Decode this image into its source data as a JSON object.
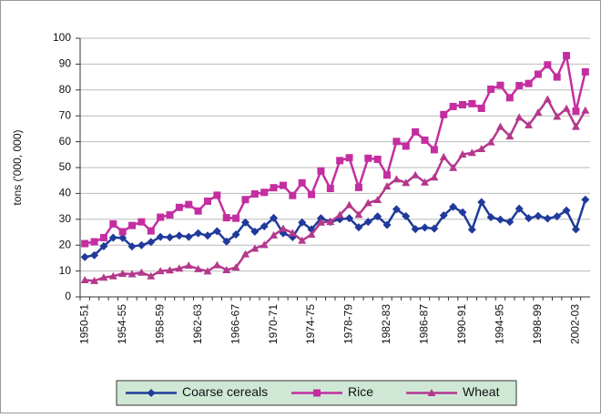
{
  "chart_data": {
    "type": "line",
    "y_label": "tons ('000, 000)",
    "categories": [
      "1950-51",
      null,
      null,
      null,
      "1954-55",
      null,
      null,
      null,
      "1958-59",
      null,
      null,
      null,
      "1962-63",
      null,
      null,
      null,
      "1966-67",
      null,
      null,
      null,
      "1970-71",
      null,
      null,
      null,
      "1974-75",
      null,
      null,
      null,
      "1978-79",
      null,
      null,
      null,
      "1982-83",
      null,
      null,
      null,
      "1986-87",
      null,
      null,
      null,
      "1990-91",
      null,
      null,
      null,
      "1994-95",
      null,
      null,
      null,
      "1998-99",
      null,
      null,
      null,
      "2002-03",
      null
    ],
    "ylim": [
      0,
      100
    ],
    "yticks": [
      0,
      10,
      20,
      30,
      40,
      50,
      60,
      70,
      80,
      90,
      100
    ],
    "grid": true,
    "legend": "bottom",
    "series": [
      {
        "name": "Coarse cereals",
        "color": "#1f3a9a",
        "marker": "diamond",
        "values": [
          15.4,
          16.1,
          19.6,
          22.9,
          22.8,
          19.5,
          20.0,
          21.2,
          23.2,
          23.0,
          23.7,
          23.2,
          24.6,
          23.7,
          25.4,
          21.4,
          24.1,
          28.8,
          25.2,
          27.3,
          30.5,
          24.6,
          23.1,
          28.8,
          26.1,
          30.4,
          29.0,
          30.0,
          30.4,
          26.9,
          29.0,
          31.1,
          27.8,
          33.9,
          31.2,
          26.2,
          26.8,
          26.4,
          31.5,
          34.8,
          32.7,
          26.0,
          36.6,
          30.8,
          29.9,
          29.0,
          34.1,
          30.4,
          31.3,
          30.3,
          31.1,
          33.4,
          26.1,
          37.6
        ]
      },
      {
        "name": "Rice",
        "color": "#c42ea0",
        "marker": "square",
        "values": [
          20.6,
          21.3,
          22.9,
          28.2,
          25.2,
          27.6,
          29.0,
          25.5,
          30.8,
          31.7,
          34.6,
          35.7,
          33.2,
          37.0,
          39.3,
          30.6,
          30.4,
          37.6,
          39.8,
          40.4,
          42.2,
          43.1,
          39.2,
          44.1,
          39.6,
          48.7,
          41.9,
          52.7,
          53.8,
          42.3,
          53.6,
          53.2,
          47.1,
          60.1,
          58.3,
          63.8,
          60.6,
          56.9,
          70.5,
          73.6,
          74.3,
          74.7,
          72.9,
          80.3,
          81.8,
          77.0,
          81.7,
          82.5,
          86.1,
          89.7,
          85.0,
          93.3,
          71.8,
          87.0
        ]
      },
      {
        "name": "Wheat",
        "color": "#b4388c",
        "marker": "triangle",
        "values": [
          6.5,
          6.2,
          7.5,
          8.0,
          9.0,
          8.8,
          9.4,
          8.0,
          10.0,
          10.3,
          11.0,
          12.1,
          10.8,
          9.9,
          12.3,
          10.4,
          11.4,
          16.5,
          18.7,
          20.1,
          23.8,
          26.4,
          24.7,
          21.8,
          24.1,
          28.8,
          29.0,
          31.7,
          35.5,
          31.8,
          36.3,
          37.5,
          42.8,
          45.5,
          44.1,
          47.1,
          44.3,
          46.2,
          54.1,
          49.9,
          55.1,
          55.7,
          57.2,
          59.8,
          65.8,
          62.1,
          69.4,
          66.4,
          71.3,
          76.4,
          69.7,
          72.8,
          65.8,
          72.1
        ]
      }
    ]
  }
}
